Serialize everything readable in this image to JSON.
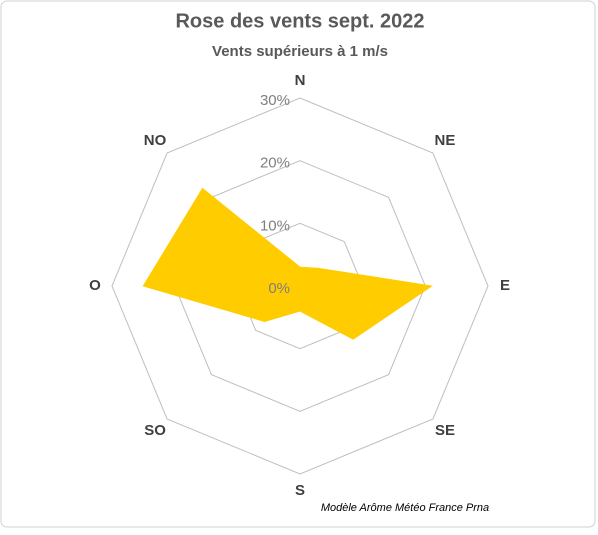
{
  "chart_data": {
    "type": "radar",
    "title": "Rose des vents sept. 2022",
    "subtitle": "Vents supérieurs à 1 m/s",
    "annotation": "Modèle Arôme Météo France Prna",
    "categories": [
      "N",
      "NE",
      "E",
      "SE",
      "S",
      "SO",
      "O",
      "NO"
    ],
    "series": [
      {
        "name": "sept. 2022",
        "color": "#FFCC00",
        "values": [
          3,
          4,
          21,
          12,
          4,
          8,
          25,
          22
        ]
      }
    ],
    "ylim": [
      0,
      30
    ],
    "yticks": [
      {
        "value": 0,
        "label": "0%"
      },
      {
        "value": 10,
        "label": "10%"
      },
      {
        "value": 20,
        "label": "20%"
      },
      {
        "value": 30,
        "label": "30%"
      }
    ],
    "grid": true
  }
}
